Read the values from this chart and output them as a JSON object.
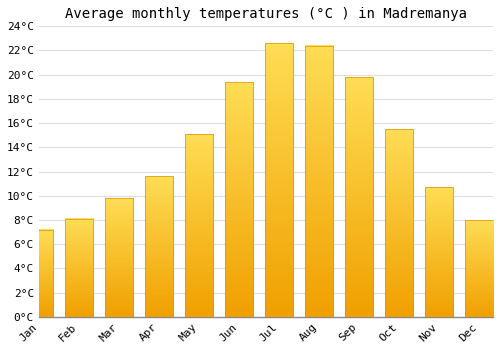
{
  "title": "Average monthly temperatures (°C ) in Madremanya",
  "months": [
    "Jan",
    "Feb",
    "Mar",
    "Apr",
    "May",
    "Jun",
    "Jul",
    "Aug",
    "Sep",
    "Oct",
    "Nov",
    "Dec"
  ],
  "values": [
    7.2,
    8.1,
    9.8,
    11.6,
    15.1,
    19.4,
    22.6,
    22.4,
    19.8,
    15.5,
    10.7,
    8.0
  ],
  "bar_color_top": "#FDB92E",
  "bar_color_bottom": "#F5A800",
  "bar_edge_color": "#D4940A",
  "background_color": "#FFFFFF",
  "grid_color": "#DDDDDD",
  "ylim": [
    0,
    24
  ],
  "ytick_step": 2,
  "title_fontsize": 10,
  "tick_fontsize": 8,
  "font_family": "monospace"
}
